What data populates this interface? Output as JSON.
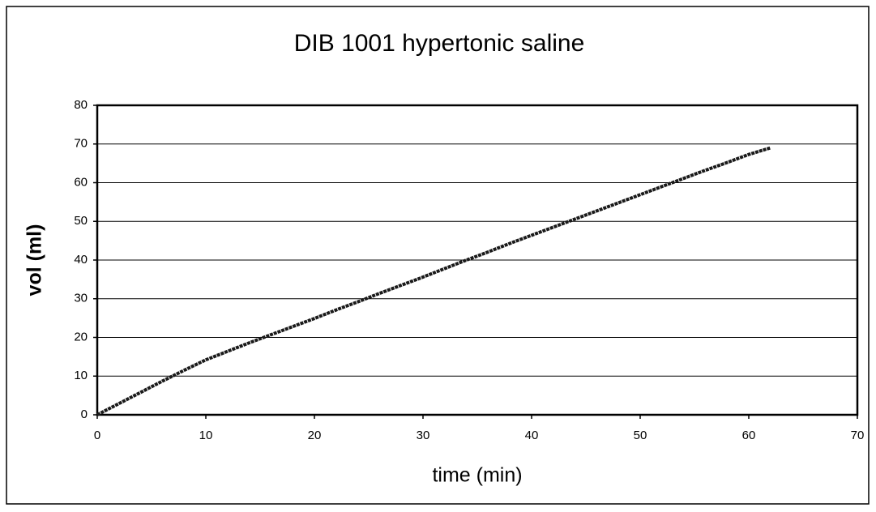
{
  "chart_data": {
    "type": "line",
    "title": "DIB 1001 hypertonic saline",
    "xlabel": "time  (min)",
    "ylabel": "vol (ml)",
    "x": [
      0,
      2,
      4,
      6,
      8,
      10,
      12,
      14,
      16,
      18,
      20,
      22,
      24,
      26,
      28,
      30,
      32,
      34,
      36,
      38,
      40,
      42,
      44,
      46,
      48,
      50,
      52,
      54,
      56,
      58,
      60,
      62
    ],
    "series": [
      {
        "name": "vol",
        "color": "#1a1a1a",
        "values": [
          0,
          2.9,
          5.8,
          8.7,
          11.5,
          14.2,
          16.4,
          18.6,
          20.7,
          22.8,
          24.9,
          27.1,
          29.2,
          31.4,
          33.5,
          35.6,
          37.8,
          40,
          42.1,
          44.3,
          46.4,
          48.5,
          50.6,
          52.7,
          54.8,
          56.9,
          59,
          61.1,
          63.2,
          65.2,
          67.3,
          69
        ]
      }
    ],
    "xlim": [
      0,
      70
    ],
    "xticks": [
      0,
      10,
      20,
      30,
      40,
      50,
      60,
      70
    ],
    "ylim": [
      0,
      80
    ],
    "yticks": [
      0,
      10,
      20,
      30,
      40,
      50,
      60,
      70,
      80
    ],
    "grid": true
  }
}
